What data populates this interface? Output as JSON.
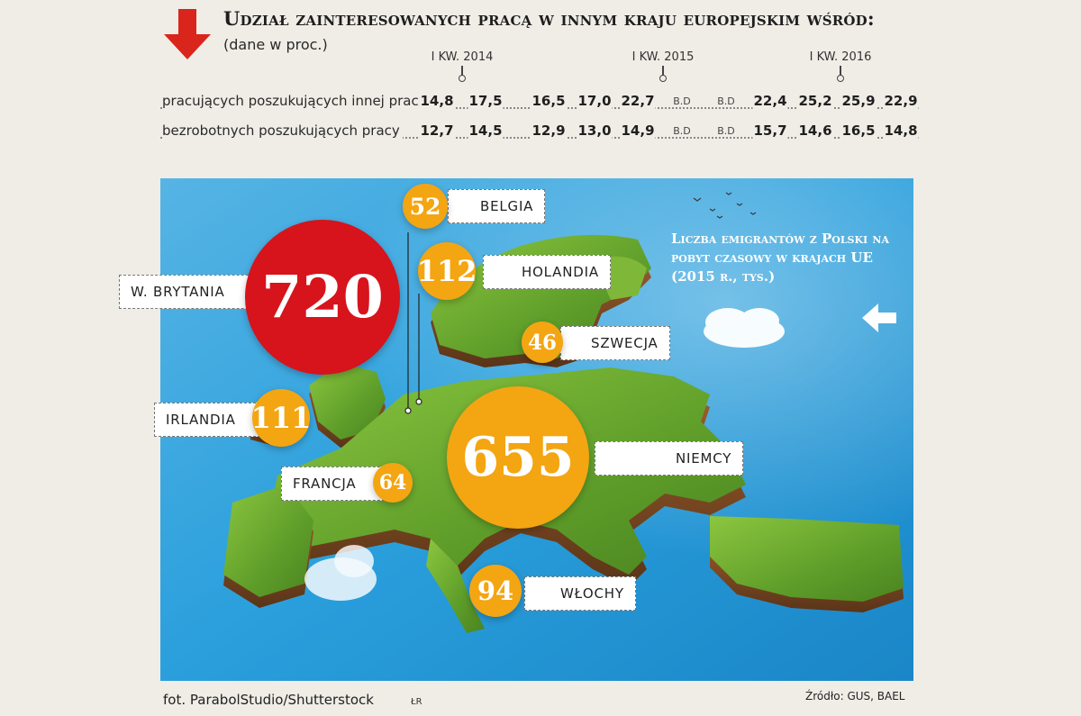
{
  "header": {
    "title": "Udział zainteresowanych pracą w innym kraju europejskim wśród:",
    "subtitle": "(dane w proc.)"
  },
  "chart_data": [
    {
      "type": "table",
      "title": "Udział zainteresowanych pracą w innym kraju europejskim wśród:",
      "subtitle": "(dane w proc.)",
      "periods": [
        "I KW. 2014",
        "I KW. 2015",
        "I KW. 2016"
      ],
      "series": [
        {
          "name": "pracujących poszukujących innej pracy",
          "values": [
            "14,8",
            "17,5",
            "16,5",
            "17,0",
            "22,7",
            "B.D",
            "B.D",
            "22,4",
            "25,2",
            "25,9",
            "22,9"
          ]
        },
        {
          "name": "bezrobotnych poszukujących pracy",
          "values": [
            "12,7",
            "14,5",
            "12,9",
            "13,0",
            "14,9",
            "B.D",
            "B.D",
            "15,7",
            "14,6",
            "16,5",
            "14,8"
          ]
        }
      ]
    },
    {
      "type": "bubble-map",
      "title": "Liczba emigrantów z Polski na pobyt czasowy w krajach UE (2015 r., tys.)",
      "categories": [
        "W. BRYTANIA",
        "NIEMCY",
        "HOLANDIA",
        "IRLANDIA",
        "WŁOCHY",
        "FRANCJA",
        "BELGIA",
        "SZWECJA"
      ],
      "values": [
        720,
        655,
        112,
        111,
        94,
        64,
        52,
        46
      ]
    }
  ],
  "colors": {
    "background": "#efede6",
    "arrow_red": "#d9251c",
    "bubble_red": "#d7131c",
    "bubble_orange": "#f4a512",
    "sea_blue": "#2a9fdc",
    "land_green": "#6aa82b"
  },
  "icons": {
    "title_icon": "arrow-down-icon",
    "side_icon": "arrow-left-icon"
  },
  "footer": {
    "photo_credit": "fot. ParabolStudio/Shutterstock",
    "initials": "ŁR",
    "source": "Źródło: GUS, BAEL"
  }
}
